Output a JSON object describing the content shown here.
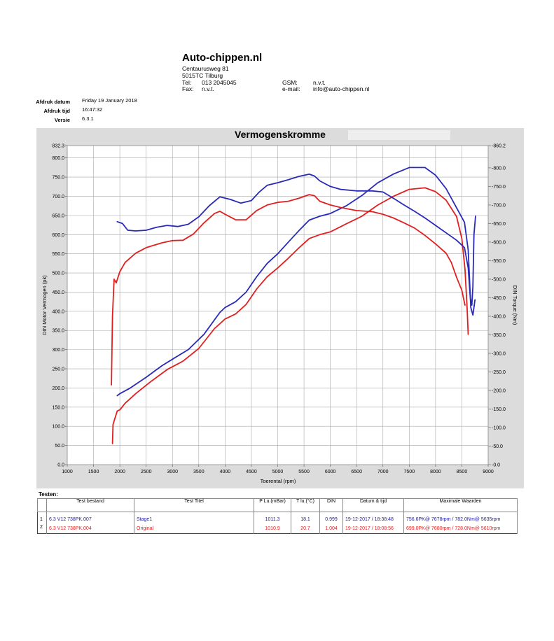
{
  "header": {
    "company": "Auto-chippen.nl",
    "street": "Centaurusweg 81",
    "city": "5015TC Tilburg",
    "tel_label": "Tel:",
    "tel": "013 2045045",
    "fax_label": "Fax:",
    "fax": "n.v.t.",
    "gsm_label": "GSM:",
    "gsm": "n.v.t.",
    "email_label": "e-mail:",
    "email": "info@auto-chippen.nl"
  },
  "meta": {
    "date_label": "Afdruk datum",
    "date": "Friday 19 January 2018",
    "time_label": "Afdruk tijd",
    "time": "16:47:32",
    "version_label": "Versie",
    "version": "6.3.1"
  },
  "chart_data": {
    "type": "line",
    "title": "Vermogenskromme",
    "xlabel": "Toerental (rpm)",
    "ylabel_left": "DIN Motor Vermogen (pk)",
    "ylabel_right": "DIN Torque (Nm)",
    "xlim": [
      1000,
      9000
    ],
    "ylim_left": [
      0,
      832.3
    ],
    "ylim_right": [
      0,
      860.2
    ],
    "x_ticks": [
      1000,
      1500,
      2000,
      2500,
      3000,
      3500,
      4000,
      4500,
      5000,
      5500,
      6000,
      6500,
      7000,
      7500,
      8000,
      8500,
      9000
    ],
    "y_left_ticks": [
      0,
      50,
      100,
      150,
      200,
      250,
      300,
      350,
      400,
      450,
      500,
      550,
      600,
      650,
      700,
      750,
      800,
      832.3
    ],
    "y_left_tick_labels": [
      "0.0",
      "50.0",
      "100.0",
      "150.0",
      "200.0",
      "250.0",
      "300.0",
      "350.0",
      "400.0",
      "450.0",
      "500.0",
      "550.0",
      "600.0",
      "650.0",
      "700.0",
      "750.0",
      "800.0",
      "832.3"
    ],
    "y_right_ticks": [
      0,
      50,
      100,
      150,
      200,
      250,
      300,
      350,
      400,
      450,
      500,
      550,
      600,
      650,
      700,
      750,
      800,
      860.2
    ],
    "y_right_tick_labels": [
      "0.0",
      "50.0",
      "100.0",
      "150.0",
      "200.0",
      "250.0",
      "300.0",
      "350.0",
      "400.0",
      "450.0",
      "500.0",
      "550.0",
      "600.0",
      "650.0",
      "700.0",
      "750.0",
      "800.0",
      "860.2"
    ],
    "grid": true,
    "series": [
      {
        "name": "Stage1",
        "quantity": "power",
        "axis": "left",
        "color": "#2a2ab8",
        "points": [
          [
            1950,
            180
          ],
          [
            2000,
            185
          ],
          [
            2200,
            200
          ],
          [
            2500,
            228
          ],
          [
            2800,
            258
          ],
          [
            3000,
            275
          ],
          [
            3300,
            300
          ],
          [
            3600,
            340
          ],
          [
            3900,
            397
          ],
          [
            4000,
            410
          ],
          [
            4200,
            425
          ],
          [
            4400,
            450
          ],
          [
            4600,
            490
          ],
          [
            4800,
            525
          ],
          [
            5000,
            550
          ],
          [
            5200,
            580
          ],
          [
            5400,
            610
          ],
          [
            5600,
            638
          ],
          [
            5800,
            648
          ],
          [
            6000,
            655
          ],
          [
            6300,
            675
          ],
          [
            6600,
            702
          ],
          [
            6900,
            735
          ],
          [
            7200,
            758
          ],
          [
            7500,
            775
          ],
          [
            7800,
            775
          ],
          [
            8000,
            755
          ],
          [
            8200,
            720
          ],
          [
            8400,
            670
          ],
          [
            8550,
            632
          ],
          [
            8620,
            560
          ],
          [
            8670,
            410
          ],
          [
            8710,
            390
          ],
          [
            8750,
            430
          ]
        ]
      },
      {
        "name": "Original",
        "quantity": "power",
        "axis": "left",
        "color": "#e02020",
        "points": [
          [
            1860,
            55
          ],
          [
            1870,
            105
          ],
          [
            1900,
            118
          ],
          [
            1950,
            140
          ],
          [
            2000,
            143
          ],
          [
            2100,
            160
          ],
          [
            2300,
            185
          ],
          [
            2600,
            218
          ],
          [
            2900,
            248
          ],
          [
            3200,
            270
          ],
          [
            3500,
            303
          ],
          [
            3800,
            355
          ],
          [
            4000,
            380
          ],
          [
            4200,
            393
          ],
          [
            4400,
            418
          ],
          [
            4600,
            458
          ],
          [
            4800,
            490
          ],
          [
            5000,
            513
          ],
          [
            5200,
            538
          ],
          [
            5400,
            565
          ],
          [
            5600,
            590
          ],
          [
            5800,
            600
          ],
          [
            6000,
            607
          ],
          [
            6300,
            628
          ],
          [
            6600,
            648
          ],
          [
            6900,
            677
          ],
          [
            7200,
            700
          ],
          [
            7500,
            718
          ],
          [
            7800,
            722
          ],
          [
            8000,
            712
          ],
          [
            8200,
            690
          ],
          [
            8400,
            647
          ],
          [
            8500,
            590
          ],
          [
            8560,
            510
          ],
          [
            8600,
            410
          ],
          [
            8620,
            340
          ]
        ]
      },
      {
        "name": "Stage1",
        "quantity": "torque",
        "axis": "right",
        "color": "#2a2ab8",
        "points": [
          [
            1950,
            655
          ],
          [
            2050,
            650
          ],
          [
            2150,
            632
          ],
          [
            2300,
            630
          ],
          [
            2500,
            632
          ],
          [
            2700,
            640
          ],
          [
            2900,
            645
          ],
          [
            3100,
            642
          ],
          [
            3300,
            648
          ],
          [
            3500,
            668
          ],
          [
            3700,
            698
          ],
          [
            3900,
            722
          ],
          [
            4100,
            715
          ],
          [
            4300,
            705
          ],
          [
            4500,
            712
          ],
          [
            4650,
            735
          ],
          [
            4800,
            753
          ],
          [
            5000,
            760
          ],
          [
            5200,
            768
          ],
          [
            5400,
            777
          ],
          [
            5600,
            783
          ],
          [
            5700,
            778
          ],
          [
            5800,
            765
          ],
          [
            6000,
            750
          ],
          [
            6200,
            742
          ],
          [
            6500,
            738
          ],
          [
            6800,
            738
          ],
          [
            7000,
            735
          ],
          [
            7200,
            718
          ],
          [
            7400,
            700
          ],
          [
            7600,
            683
          ],
          [
            7800,
            665
          ],
          [
            8000,
            645
          ],
          [
            8200,
            625
          ],
          [
            8400,
            605
          ],
          [
            8550,
            585
          ],
          [
            8620,
            530
          ],
          [
            8660,
            450
          ],
          [
            8690,
            430
          ],
          [
            8710,
            480
          ],
          [
            8730,
            620
          ],
          [
            8760,
            670
          ]
        ]
      },
      {
        "name": "Original",
        "quantity": "torque",
        "axis": "right",
        "color": "#e02020",
        "points": [
          [
            1840,
            215
          ],
          [
            1860,
            400
          ],
          [
            1890,
            500
          ],
          [
            1930,
            490
          ],
          [
            2000,
            520
          ],
          [
            2100,
            545
          ],
          [
            2300,
            570
          ],
          [
            2500,
            585
          ],
          [
            2800,
            598
          ],
          [
            3000,
            604
          ],
          [
            3200,
            605
          ],
          [
            3400,
            622
          ],
          [
            3600,
            652
          ],
          [
            3800,
            677
          ],
          [
            3900,
            683
          ],
          [
            4000,
            675
          ],
          [
            4200,
            660
          ],
          [
            4400,
            660
          ],
          [
            4600,
            685
          ],
          [
            4800,
            700
          ],
          [
            5000,
            707
          ],
          [
            5200,
            710
          ],
          [
            5400,
            718
          ],
          [
            5600,
            728
          ],
          [
            5700,
            725
          ],
          [
            5800,
            710
          ],
          [
            6000,
            700
          ],
          [
            6200,
            693
          ],
          [
            6500,
            685
          ],
          [
            6800,
            682
          ],
          [
            7000,
            675
          ],
          [
            7200,
            665
          ],
          [
            7400,
            652
          ],
          [
            7600,
            638
          ],
          [
            7800,
            618
          ],
          [
            8000,
            595
          ],
          [
            8200,
            570
          ],
          [
            8300,
            545
          ],
          [
            8400,
            505
          ],
          [
            8500,
            470
          ],
          [
            8560,
            430
          ]
        ]
      }
    ]
  },
  "tests": {
    "label": "Testen:",
    "headers": [
      "Test bestand",
      "Test Titel",
      "P Lu.(mBar)",
      "T lu.(°C)",
      "DIN",
      "Datum & tijd",
      "Maximale Waarden"
    ],
    "rows": [
      {
        "num": "1",
        "file": "6.3 V12 738PK.007",
        "title": "Stage1",
        "p": "1011.3",
        "t": "18.1",
        "din": "0.999",
        "datetime": "19-12-2017 / 18:38:48",
        "max": "756.6PK@ 7678rpm / 782.0Nm@ 5635rpm",
        "color": "#1a1aa8"
      },
      {
        "num": "2",
        "file": "6.3 V12 738PK.004",
        "title": "Original",
        "p": "1010.9",
        "t": "20.7",
        "din": "1.004",
        "datetime": "19-12-2017 / 18:08:56",
        "max": "699.0PK@ 7680rpm / 728.0Nm@ 5610rpm",
        "color": "#e02020"
      }
    ]
  }
}
